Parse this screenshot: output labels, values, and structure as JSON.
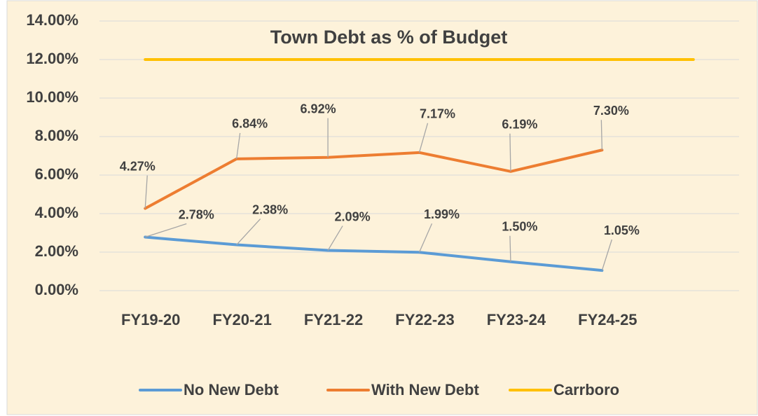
{
  "chart_data": {
    "type": "line",
    "title": "Town Debt as % of Budget",
    "categories": [
      "FY19-20",
      "FY20-21",
      "FY21-22",
      "FY22-23",
      "FY23-24",
      "FY24-25",
      null
    ],
    "series": [
      {
        "name": "No New Debt",
        "color": "#5b9bd5",
        "values": [
          2.78,
          2.38,
          2.09,
          1.99,
          1.5,
          1.05,
          null
        ],
        "value_labels": [
          "2.78%",
          "2.38%",
          "2.09%",
          "1.99%",
          "1.50%",
          "1.05%",
          null
        ]
      },
      {
        "name": "With New Debt",
        "color": "#ed7d31",
        "values": [
          4.27,
          6.84,
          6.92,
          7.17,
          6.19,
          7.3,
          null
        ],
        "value_labels": [
          "4.27%",
          "6.84%",
          "6.92%",
          "7.17%",
          "6.19%",
          "7.30%",
          null
        ]
      },
      {
        "name": "Carrboro",
        "color": "#ffc000",
        "values": [
          12,
          12,
          12,
          12,
          12,
          12,
          12
        ]
      }
    ],
    "ylim": [
      0,
      14
    ],
    "yticks": [
      {
        "value": 0,
        "label": "0.00%"
      },
      {
        "value": 2,
        "label": "2.00%"
      },
      {
        "value": 4,
        "label": "4.00%"
      },
      {
        "value": 6,
        "label": "6.00%"
      },
      {
        "value": 8,
        "label": "8.00%"
      },
      {
        "value": 10,
        "label": "10.00%"
      },
      {
        "value": 12,
        "label": "12.00%"
      },
      {
        "value": 14,
        "label": "14.00%"
      }
    ],
    "grid": true,
    "legend": "bottom"
  }
}
